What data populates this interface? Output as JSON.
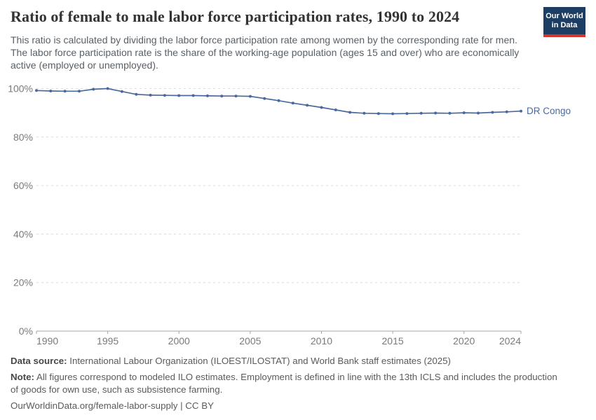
{
  "header": {
    "title": "Ratio of female to male labor force participation rates, 1990 to 2024",
    "subtitle": "This ratio is calculated by dividing the labor force participation rate among women by the corresponding rate for men. The labor force participation rate is the share of the working-age population (ages 15 and over) who are economically active (employed or unemployed).",
    "logo": {
      "line1": "Our World",
      "line2": "in Data"
    }
  },
  "chart_data": {
    "type": "line",
    "title": "Ratio of female to male labor force participation rates",
    "xlabel": "",
    "ylabel": "",
    "xlim": [
      1990,
      2024
    ],
    "ylim": [
      0,
      100
    ],
    "grid": "horizontal-dashed",
    "legend_position": "end-of-line-label",
    "x_ticks": [
      {
        "value": 1990,
        "label": "1990"
      },
      {
        "value": 1995,
        "label": "1995"
      },
      {
        "value": 2000,
        "label": "2000"
      },
      {
        "value": 2005,
        "label": "2005"
      },
      {
        "value": 2010,
        "label": "2010"
      },
      {
        "value": 2015,
        "label": "2015"
      },
      {
        "value": 2020,
        "label": "2020"
      },
      {
        "value": 2024,
        "label": "2024"
      }
    ],
    "y_ticks": [
      {
        "value": 0,
        "label": "0%"
      },
      {
        "value": 20,
        "label": "20%"
      },
      {
        "value": 40,
        "label": "40%"
      },
      {
        "value": 60,
        "label": "60%"
      },
      {
        "value": 80,
        "label": "80%"
      },
      {
        "value": 100,
        "label": "100%"
      }
    ],
    "series": [
      {
        "name": "DR Congo",
        "color": "#4a6a9e",
        "x": [
          1990,
          1991,
          1992,
          1993,
          1994,
          1995,
          1996,
          1997,
          1998,
          1999,
          2000,
          2001,
          2002,
          2003,
          2004,
          2005,
          2006,
          2007,
          2008,
          2009,
          2010,
          2011,
          2012,
          2013,
          2014,
          2015,
          2016,
          2017,
          2018,
          2019,
          2020,
          2021,
          2022,
          2023,
          2024
        ],
        "values": [
          99.2,
          99.0,
          98.9,
          98.9,
          99.7,
          100.0,
          98.8,
          97.6,
          97.3,
          97.2,
          97.1,
          97.1,
          97.0,
          96.9,
          96.9,
          96.8,
          95.9,
          95.0,
          94.0,
          93.1,
          92.2,
          91.2,
          90.2,
          89.8,
          89.7,
          89.6,
          89.7,
          89.8,
          89.9,
          89.8,
          90.0,
          89.9,
          90.2,
          90.4,
          90.7
        ]
      }
    ]
  },
  "footer": {
    "data_source_label": "Data source:",
    "data_source_text": " International Labour Organization (ILOEST/ILOSTAT) and World Bank staff estimates (2025)",
    "note_label": "Note:",
    "note_text": " All figures correspond to modeled ILO estimates. Employment is defined in line with the 13th ICLS and includes the production of goods for own use, such as subsistence farming.",
    "link": "OurWorldinData.org/female-labor-supply | CC BY"
  },
  "colors": {
    "accent_line": "#4a6a9e",
    "logo_bg": "#1d3d63",
    "logo_red": "#d0362c",
    "gridline": "#dcdcdc",
    "axis": "#a5a5a5",
    "tick_label": "#7a7a7a",
    "title": "#333333",
    "subtitle": "#596067",
    "footer_text": "#5b5b5b"
  }
}
